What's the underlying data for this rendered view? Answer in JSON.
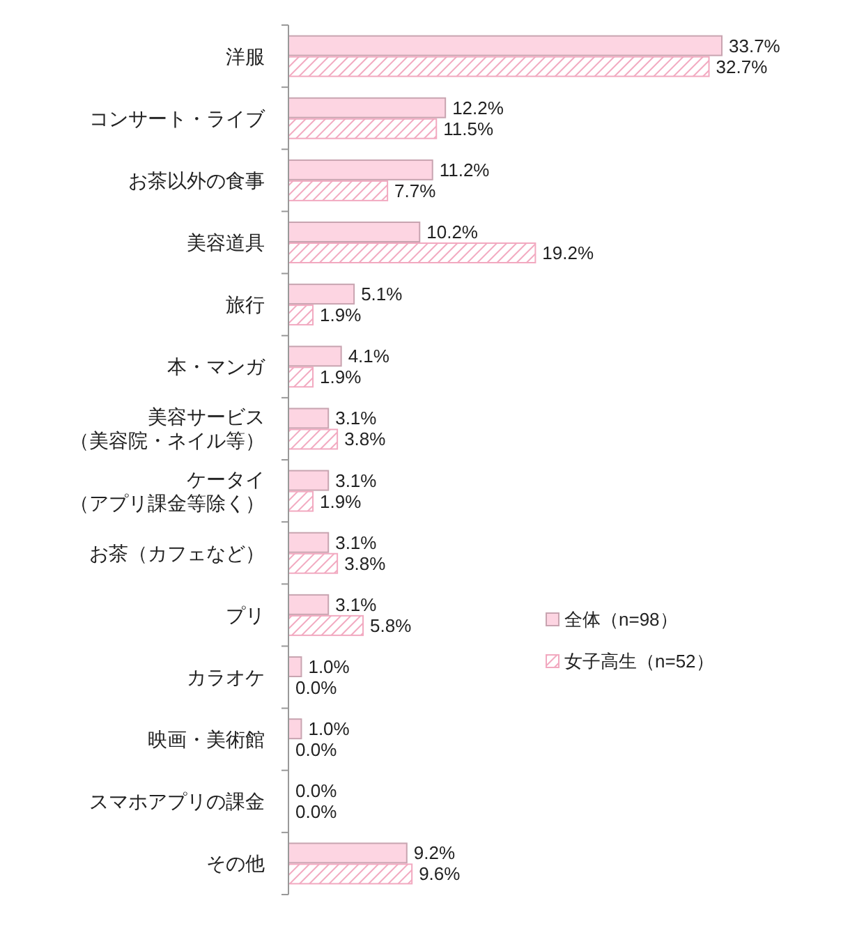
{
  "chart_data": {
    "type": "bar",
    "orientation": "horizontal",
    "categories": [
      "洋服",
      "コンサート・ライブ",
      "お茶以外の食事",
      "美容道具",
      "旅行",
      "本・マンガ",
      "美容サービス（美容院・ネイル等）",
      "ケータイ（アプリ課金等除く）",
      "お茶（カフェなど）",
      "プリ",
      "カラオケ",
      "映画・美術館",
      "スマホアプリの課金",
      "その他"
    ],
    "series": [
      {
        "name": "全体（n=98）",
        "color": "#fdd5e2",
        "values": [
          33.7,
          12.2,
          11.2,
          10.2,
          5.1,
          4.1,
          3.1,
          3.1,
          3.1,
          3.1,
          1.0,
          1.0,
          0.0,
          9.2
        ],
        "value_labels": [
          "33.7%",
          "12.2%",
          "11.2%",
          "10.2%",
          "5.1%",
          "4.1%",
          "3.1%",
          "3.1%",
          "3.1%",
          "3.1%",
          "1.0%",
          "1.0%",
          "0.0%",
          "9.2%"
        ]
      },
      {
        "name": "女子高生（n=52）",
        "color": "#f2a9c0",
        "values": [
          32.7,
          11.5,
          7.7,
          19.2,
          1.9,
          1.9,
          3.8,
          1.9,
          3.8,
          5.8,
          0.0,
          0.0,
          0.0,
          9.6
        ],
        "value_labels": [
          "32.7%",
          "11.5%",
          "7.7%",
          "19.2%",
          "1.9%",
          "1.9%",
          "3.8%",
          "1.9%",
          "3.8%",
          "5.8%",
          "0.0%",
          "0.0%",
          "0.0%",
          "9.6%"
        ]
      }
    ],
    "legend": "right"
  }
}
